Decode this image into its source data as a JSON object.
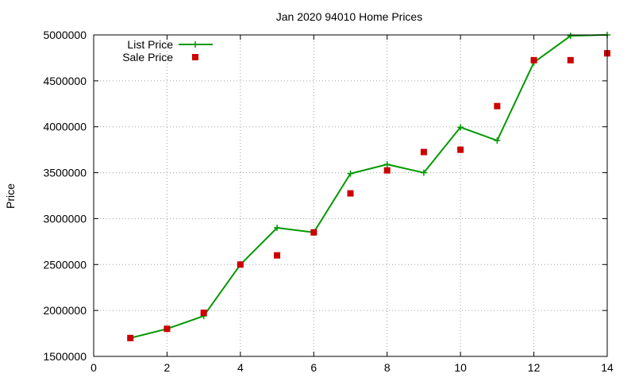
{
  "chart_data": {
    "type": "line",
    "title": "Jan 2020 94010 Home Prices",
    "xlabel": "",
    "ylabel": "Price",
    "xlim": [
      0,
      14
    ],
    "ylim": [
      1500000,
      5000000
    ],
    "x_ticks": [
      0,
      2,
      4,
      6,
      8,
      10,
      12,
      14
    ],
    "y_ticks": [
      1500000,
      2000000,
      2500000,
      3000000,
      3500000,
      4000000,
      4500000,
      5000000
    ],
    "x_tick_labels": [
      "0",
      "2",
      "4",
      "6",
      "8",
      "10",
      "12",
      "14"
    ],
    "y_tick_labels": [
      "1500000",
      "2000000",
      "2500000",
      "3000000",
      "3500000",
      "4000000",
      "4500000",
      "5000000"
    ],
    "grid": true,
    "legend_position": "top-left",
    "series": [
      {
        "name": "List Price",
        "style": "line-with-plus-markers",
        "color": "#009900",
        "x": [
          1,
          2,
          3,
          4,
          5,
          6,
          7,
          8,
          9,
          10,
          11,
          12,
          13,
          14
        ],
        "values": [
          1700000,
          1800000,
          1940000,
          2500000,
          2900000,
          2850000,
          3490000,
          3590000,
          3500000,
          3995000,
          3850000,
          4700000,
          4990000,
          5000000
        ]
      },
      {
        "name": "Sale Price",
        "style": "square-markers",
        "color": "#cc0000",
        "x": [
          1,
          2,
          3,
          4,
          5,
          6,
          7,
          8,
          9,
          10,
          11,
          12,
          13,
          14
        ],
        "values": [
          1700000,
          1800000,
          1975000,
          2500000,
          2600000,
          2850000,
          3275000,
          3525000,
          3725000,
          3750000,
          4225000,
          4725000,
          4725000,
          4800000
        ]
      }
    ]
  }
}
